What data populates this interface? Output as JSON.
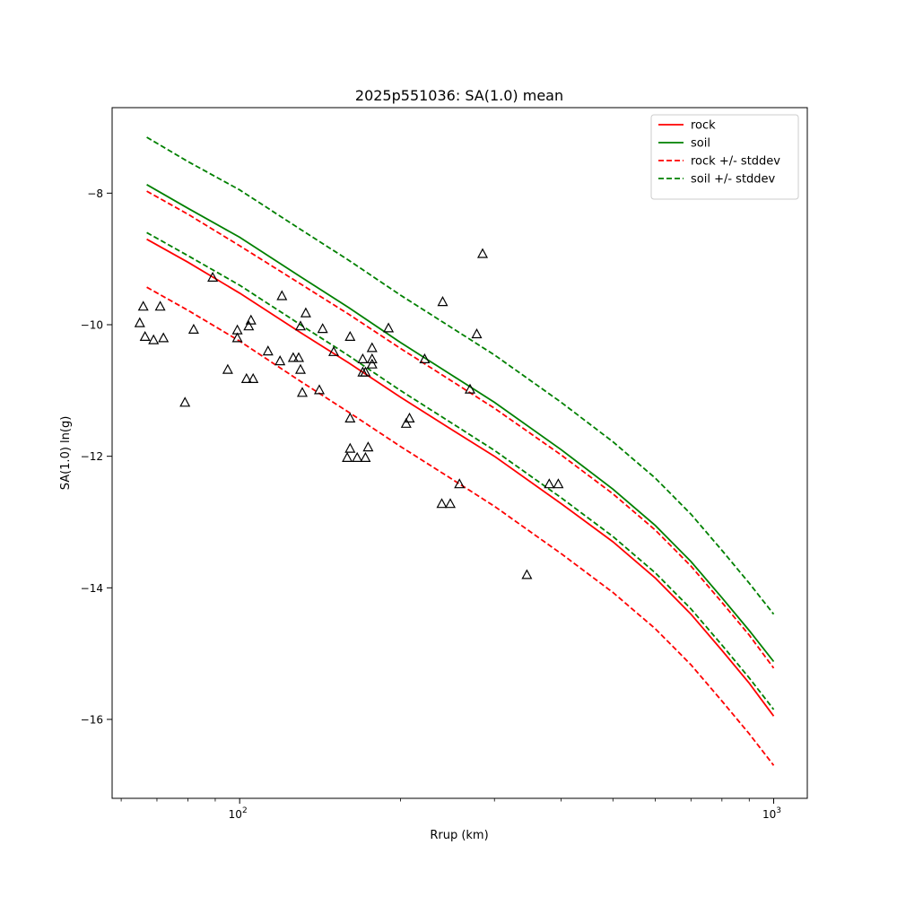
{
  "chart_data": {
    "type": "line",
    "title": "2025p551036: SA(1.0) mean",
    "xlabel": "Rrup (km)",
    "ylabel": "SA(1.0) ln(g)",
    "xscale": "log",
    "xlim": [
      57.7,
      1156
    ],
    "ylim": [
      -17.2,
      -6.7
    ],
    "x_major_ticks": [
      {
        "value": 100,
        "label": "10",
        "sup": "2"
      },
      {
        "value": 1000,
        "label": "10",
        "sup": "3"
      }
    ],
    "y_ticks": [
      {
        "value": -8,
        "label": "−8"
      },
      {
        "value": -10,
        "label": "−10"
      },
      {
        "value": -12,
        "label": "−12"
      },
      {
        "value": -14,
        "label": "−14"
      },
      {
        "value": -16,
        "label": "−16"
      }
    ],
    "grid": false,
    "legend_position": "top-right",
    "curve_x": [
      67,
      80,
      100,
      130,
      160,
      200,
      250,
      300,
      400,
      500,
      600,
      700,
      800,
      900,
      1000
    ],
    "series": [
      {
        "name": "rock",
        "color": "#ff0000",
        "dash": false,
        "legend": true,
        "values": [
          -8.7,
          -9.05,
          -9.52,
          -10.12,
          -10.58,
          -11.1,
          -11.6,
          -12.0,
          -12.72,
          -13.3,
          -13.85,
          -14.4,
          -14.95,
          -15.45,
          -15.95
        ]
      },
      {
        "name": "soil",
        "color": "#008000",
        "dash": false,
        "legend": true,
        "values": [
          -7.87,
          -8.23,
          -8.67,
          -9.27,
          -9.74,
          -10.27,
          -10.77,
          -11.18,
          -11.9,
          -12.5,
          -13.05,
          -13.6,
          -14.15,
          -14.65,
          -15.12
        ]
      },
      {
        "name": "rock +/- stddev",
        "color": "#ff0000",
        "dash": true,
        "legend": true,
        "values": [
          -7.97,
          -8.32,
          -8.8,
          -9.38,
          -9.84,
          -10.36,
          -10.86,
          -11.27,
          -11.98,
          -12.57,
          -13.12,
          -13.67,
          -14.22,
          -14.72,
          -15.22
        ]
      },
      {
        "name": "rock +/- stddev",
        "color": "#ff0000",
        "dash": true,
        "legend": false,
        "values": [
          -9.43,
          -9.78,
          -10.25,
          -10.86,
          -11.33,
          -11.85,
          -12.35,
          -12.76,
          -13.48,
          -14.07,
          -14.62,
          -15.17,
          -15.72,
          -16.22,
          -16.7
        ]
      },
      {
        "name": "soil +/- stddev",
        "color": "#008000",
        "dash": true,
        "legend": true,
        "values": [
          -7.15,
          -7.52,
          -7.95,
          -8.55,
          -9.02,
          -9.55,
          -10.05,
          -10.46,
          -11.18,
          -11.78,
          -12.33,
          -12.88,
          -13.43,
          -13.93,
          -14.4
        ]
      },
      {
        "name": "soil +/- stddev",
        "color": "#008000",
        "dash": true,
        "legend": false,
        "values": [
          -8.6,
          -8.95,
          -9.4,
          -10.0,
          -10.47,
          -11.0,
          -11.5,
          -11.91,
          -12.63,
          -13.22,
          -13.77,
          -14.32,
          -14.87,
          -15.37,
          -15.85
        ]
      }
    ],
    "observations": {
      "marker": "triangle",
      "points": [
        [
          65,
          -9.97
        ],
        [
          66,
          -9.72
        ],
        [
          66.5,
          -10.18
        ],
        [
          69,
          -10.23
        ],
        [
          71,
          -9.72
        ],
        [
          72,
          -10.2
        ],
        [
          79,
          -11.18
        ],
        [
          82,
          -10.07
        ],
        [
          89,
          -9.28
        ],
        [
          95,
          -10.68
        ],
        [
          99,
          -10.08
        ],
        [
          99,
          -10.2
        ],
        [
          103,
          -10.82
        ],
        [
          104,
          -10.02
        ],
        [
          105,
          -9.93
        ],
        [
          106,
          -10.82
        ],
        [
          113,
          -10.4
        ],
        [
          119,
          -10.55
        ],
        [
          120,
          -9.56
        ],
        [
          126,
          -10.5
        ],
        [
          129,
          -10.5
        ],
        [
          130,
          -10.02
        ],
        [
          131,
          -11.03
        ],
        [
          130,
          -10.68
        ],
        [
          133,
          -9.82
        ],
        [
          141,
          -10.99
        ],
        [
          143,
          -10.06
        ],
        [
          150,
          -10.41
        ],
        [
          161,
          -10.18
        ],
        [
          159,
          -12.02
        ],
        [
          161,
          -11.88
        ],
        [
          161,
          -11.42
        ],
        [
          166,
          -12.02
        ],
        [
          170,
          -10.52
        ],
        [
          170,
          -10.72
        ],
        [
          172,
          -12.02
        ],
        [
          172,
          -10.72
        ],
        [
          174,
          -11.86
        ],
        [
          177,
          -10.35
        ],
        [
          177,
          -10.52
        ],
        [
          177,
          -10.6
        ],
        [
          190,
          -10.05
        ],
        [
          205,
          -11.5
        ],
        [
          208,
          -11.42
        ],
        [
          222,
          -10.52
        ],
        [
          239,
          -12.72
        ],
        [
          240,
          -9.65
        ],
        [
          248,
          -12.72
        ],
        [
          258,
          -12.42
        ],
        [
          270,
          -10.98
        ],
        [
          278,
          -10.14
        ],
        [
          285,
          -8.92
        ],
        [
          345,
          -13.8
        ],
        [
          380,
          -12.42
        ],
        [
          395,
          -12.42
        ]
      ]
    }
  }
}
